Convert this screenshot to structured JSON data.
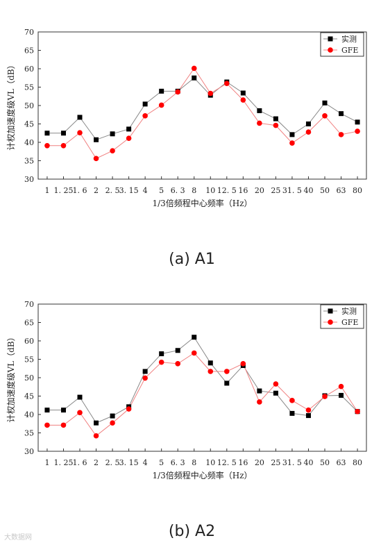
{
  "chart_data": [
    {
      "type": "line",
      "categories": [
        "1",
        "1.25",
        "1.6",
        "2",
        "2.5",
        "3.15",
        "4",
        "5",
        "6.3",
        "8",
        "10",
        "12.5",
        "16",
        "20",
        "25",
        "31.5",
        "40",
        "50",
        "63",
        "80"
      ],
      "series": [
        {
          "name": "实测",
          "values": [
            42.5,
            42.5,
            46.8,
            40.7,
            42.3,
            43.6,
            50.4,
            53.9,
            53.9,
            57.5,
            52.8,
            56.4,
            53.4,
            48.6,
            46.4,
            42.1,
            45.0,
            50.7,
            47.8,
            45.5
          ],
          "color": "#000000",
          "marker": "square"
        },
        {
          "name": "GFE",
          "values": [
            39.1,
            39.1,
            42.6,
            35.6,
            37.7,
            41.1,
            47.2,
            50.1,
            53.7,
            60.1,
            53.3,
            56.0,
            51.5,
            45.2,
            44.6,
            39.8,
            42.8,
            47.2,
            42.1,
            43.0
          ],
          "color": "#ff0000",
          "marker": "circle"
        }
      ],
      "xlabel": "1/3倍频程中心频率（Hz）",
      "ylabel": "计权加速度级VL（dB）",
      "ylim": [
        30,
        70
      ],
      "yticks": [
        "30",
        "35",
        "40",
        "45",
        "50",
        "55",
        "60",
        "65",
        "70"
      ],
      "legend": "top-right",
      "caption": "(a) A1"
    },
    {
      "type": "line",
      "categories": [
        "1",
        "1.25",
        "1.6",
        "2",
        "2.5",
        "3.15",
        "4",
        "5",
        "6.3",
        "8",
        "10",
        "12.5",
        "16",
        "20",
        "25",
        "31.5",
        "40",
        "50",
        "63",
        "80"
      ],
      "series": [
        {
          "name": "实测",
          "values": [
            41.2,
            41.2,
            44.7,
            37.7,
            39.6,
            42.1,
            51.7,
            56.5,
            57.4,
            61.0,
            54.0,
            48.5,
            53.3,
            46.4,
            45.8,
            40.3,
            39.7,
            45.1,
            45.2,
            40.8
          ],
          "color": "#000000",
          "marker": "square"
        },
        {
          "name": "GFE",
          "values": [
            37.1,
            37.1,
            40.5,
            34.2,
            37.7,
            41.5,
            49.9,
            54.2,
            53.8,
            56.7,
            51.7,
            51.7,
            53.8,
            43.4,
            48.3,
            43.8,
            41.2,
            44.9,
            47.6,
            40.8
          ],
          "color": "#ff0000",
          "marker": "circle"
        }
      ],
      "xlabel": "1/3倍频程中心频率（Hz）",
      "ylabel": "计权加速度级VL（dB）",
      "ylim": [
        30,
        70
      ],
      "yticks": [
        "30",
        "35",
        "40",
        "45",
        "50",
        "55",
        "60",
        "65",
        "70"
      ],
      "legend": "top-right",
      "caption": "(b) A2"
    }
  ],
  "xtick_labels": [
    "1",
    "1. 25",
    "1. 6",
    "2",
    "2. 5",
    "3. 15",
    "4",
    "5",
    "6. 3",
    "8",
    "10",
    "12. 5",
    "16",
    "20",
    "25",
    "31. 5",
    "40",
    "50",
    "63",
    "80"
  ],
  "watermark": "大数据网"
}
